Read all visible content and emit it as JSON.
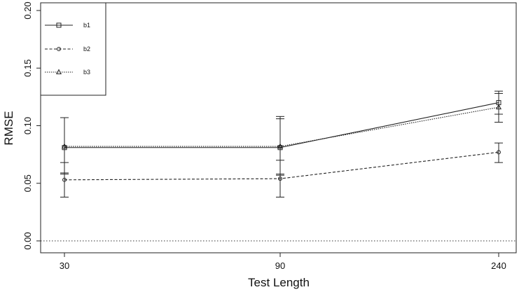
{
  "chart_data": {
    "type": "line",
    "title": "",
    "xlabel": "Test Length",
    "ylabel": "RMSE",
    "x": [
      30,
      90,
      240
    ],
    "x_tick_labels": [
      "30",
      "90",
      "240"
    ],
    "ylim": [
      0,
      0.2
    ],
    "y_ticks": [
      0.0,
      0.05,
      0.1,
      0.15,
      0.2
    ],
    "y_tick_labels": [
      "0.00",
      "0.05",
      "0.10",
      "0.15",
      "0.20"
    ],
    "reference_line": 0.0,
    "grid": false,
    "legend_position": "top-left",
    "series": [
      {
        "name": "b1",
        "line": "solid",
        "marker": "square",
        "values": [
          0.081,
          0.081,
          0.12
        ],
        "lower": [
          0.058,
          0.057,
          0.11
        ],
        "upper": [
          0.107,
          0.106,
          0.13
        ]
      },
      {
        "name": "b2",
        "line": "dashed",
        "marker": "circle",
        "values": [
          0.053,
          0.054,
          0.077
        ],
        "lower": [
          0.038,
          0.038,
          0.068
        ],
        "upper": [
          0.068,
          0.07,
          0.085
        ]
      },
      {
        "name": "b3",
        "line": "dotted",
        "marker": "triangle",
        "values": [
          0.082,
          0.082,
          0.116
        ],
        "lower": [
          0.059,
          0.058,
          0.103
        ],
        "upper": [
          0.107,
          0.108,
          0.128
        ]
      }
    ]
  }
}
